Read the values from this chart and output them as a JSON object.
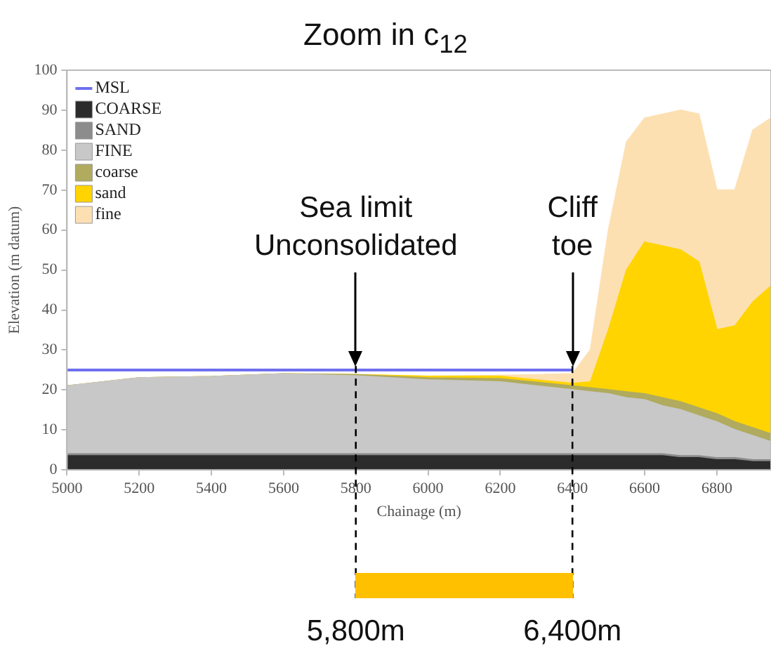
{
  "chart_data": {
    "type": "area",
    "title": "Zoom in c$_{12}$",
    "xlabel": "Chainage (m)",
    "ylabel": "Elevation (m datum)",
    "x": [
      5000,
      5200,
      5400,
      5600,
      5800,
      6000,
      6200,
      6400,
      6450,
      6500,
      6550,
      6600,
      6650,
      6700,
      6750,
      6800,
      6850,
      6900,
      6950
    ],
    "stacked": true,
    "series": [
      {
        "name": "MSL",
        "type": "line",
        "color": "#6f6ff0",
        "x": [
          5000,
          6400
        ],
        "values": [
          25,
          25
        ]
      },
      {
        "name": "COARSE",
        "color": "#2b2b2b",
        "values": [
          3.5,
          3.5,
          3.5,
          3.5,
          3.5,
          3.5,
          3.5,
          3.5,
          3.5,
          3.5,
          3.5,
          3.5,
          3.5,
          3,
          3,
          2.5,
          2.5,
          2,
          2
        ]
      },
      {
        "name": "SAND",
        "color": "#8c8c8c",
        "values": [
          0.5,
          0.5,
          0.5,
          0.5,
          0.5,
          0.5,
          0.5,
          0.5,
          0.5,
          0.5,
          0.5,
          0.5,
          0.5,
          0.5,
          0.5,
          0.5,
          0.5,
          0.5,
          0.5
        ]
      },
      {
        "name": "FINE",
        "color": "#c8c8c8",
        "values": [
          17,
          19,
          19.3,
          20,
          19.5,
          18.5,
          18,
          16,
          15.5,
          15,
          14,
          13.5,
          12,
          11.5,
          10,
          9,
          7,
          6,
          4.5
        ]
      },
      {
        "name": "coarse",
        "color": "#b0ab5e",
        "values": [
          0,
          0,
          0,
          0,
          0.3,
          0.5,
          0.8,
          1,
          1,
          1,
          1.5,
          1.5,
          2,
          2,
          2,
          2,
          2,
          2,
          2
        ]
      },
      {
        "name": "sand",
        "color": "#ffd400",
        "values": [
          0,
          0,
          0,
          0,
          0,
          0.4,
          0.6,
          0.6,
          1.5,
          15,
          30.5,
          38,
          38,
          38,
          36.5,
          21,
          24,
          31.5,
          37
        ]
      },
      {
        "name": "fine",
        "color": "#fde0b2",
        "values": [
          0,
          0,
          0,
          0,
          0,
          0,
          0.2,
          2.4,
          8,
          25,
          32,
          31,
          33,
          35,
          37,
          35,
          34,
          43,
          42
        ]
      }
    ],
    "xlim": [
      5000,
      6950
    ],
    "ylim": [
      0,
      100
    ],
    "xticks": [
      5000,
      5200,
      5400,
      5600,
      5800,
      6000,
      6200,
      6400,
      6600,
      6800
    ],
    "yticks": [
      0,
      10,
      20,
      30,
      40,
      50,
      60,
      70,
      80,
      90,
      100
    ],
    "grid": false,
    "legend": "top left",
    "ref_lines": [
      {
        "axis": "x",
        "value": 5800,
        "color": "#000000",
        "line_style": "dashed"
      },
      {
        "axis": "x",
        "value": 6400,
        "color": "#000000",
        "line_style": "dashed"
      }
    ],
    "annotations": [
      "Sea limit\nUnconsolidated",
      "Cliff\ntoe",
      "5,800m",
      "6,400m"
    ]
  }
}
